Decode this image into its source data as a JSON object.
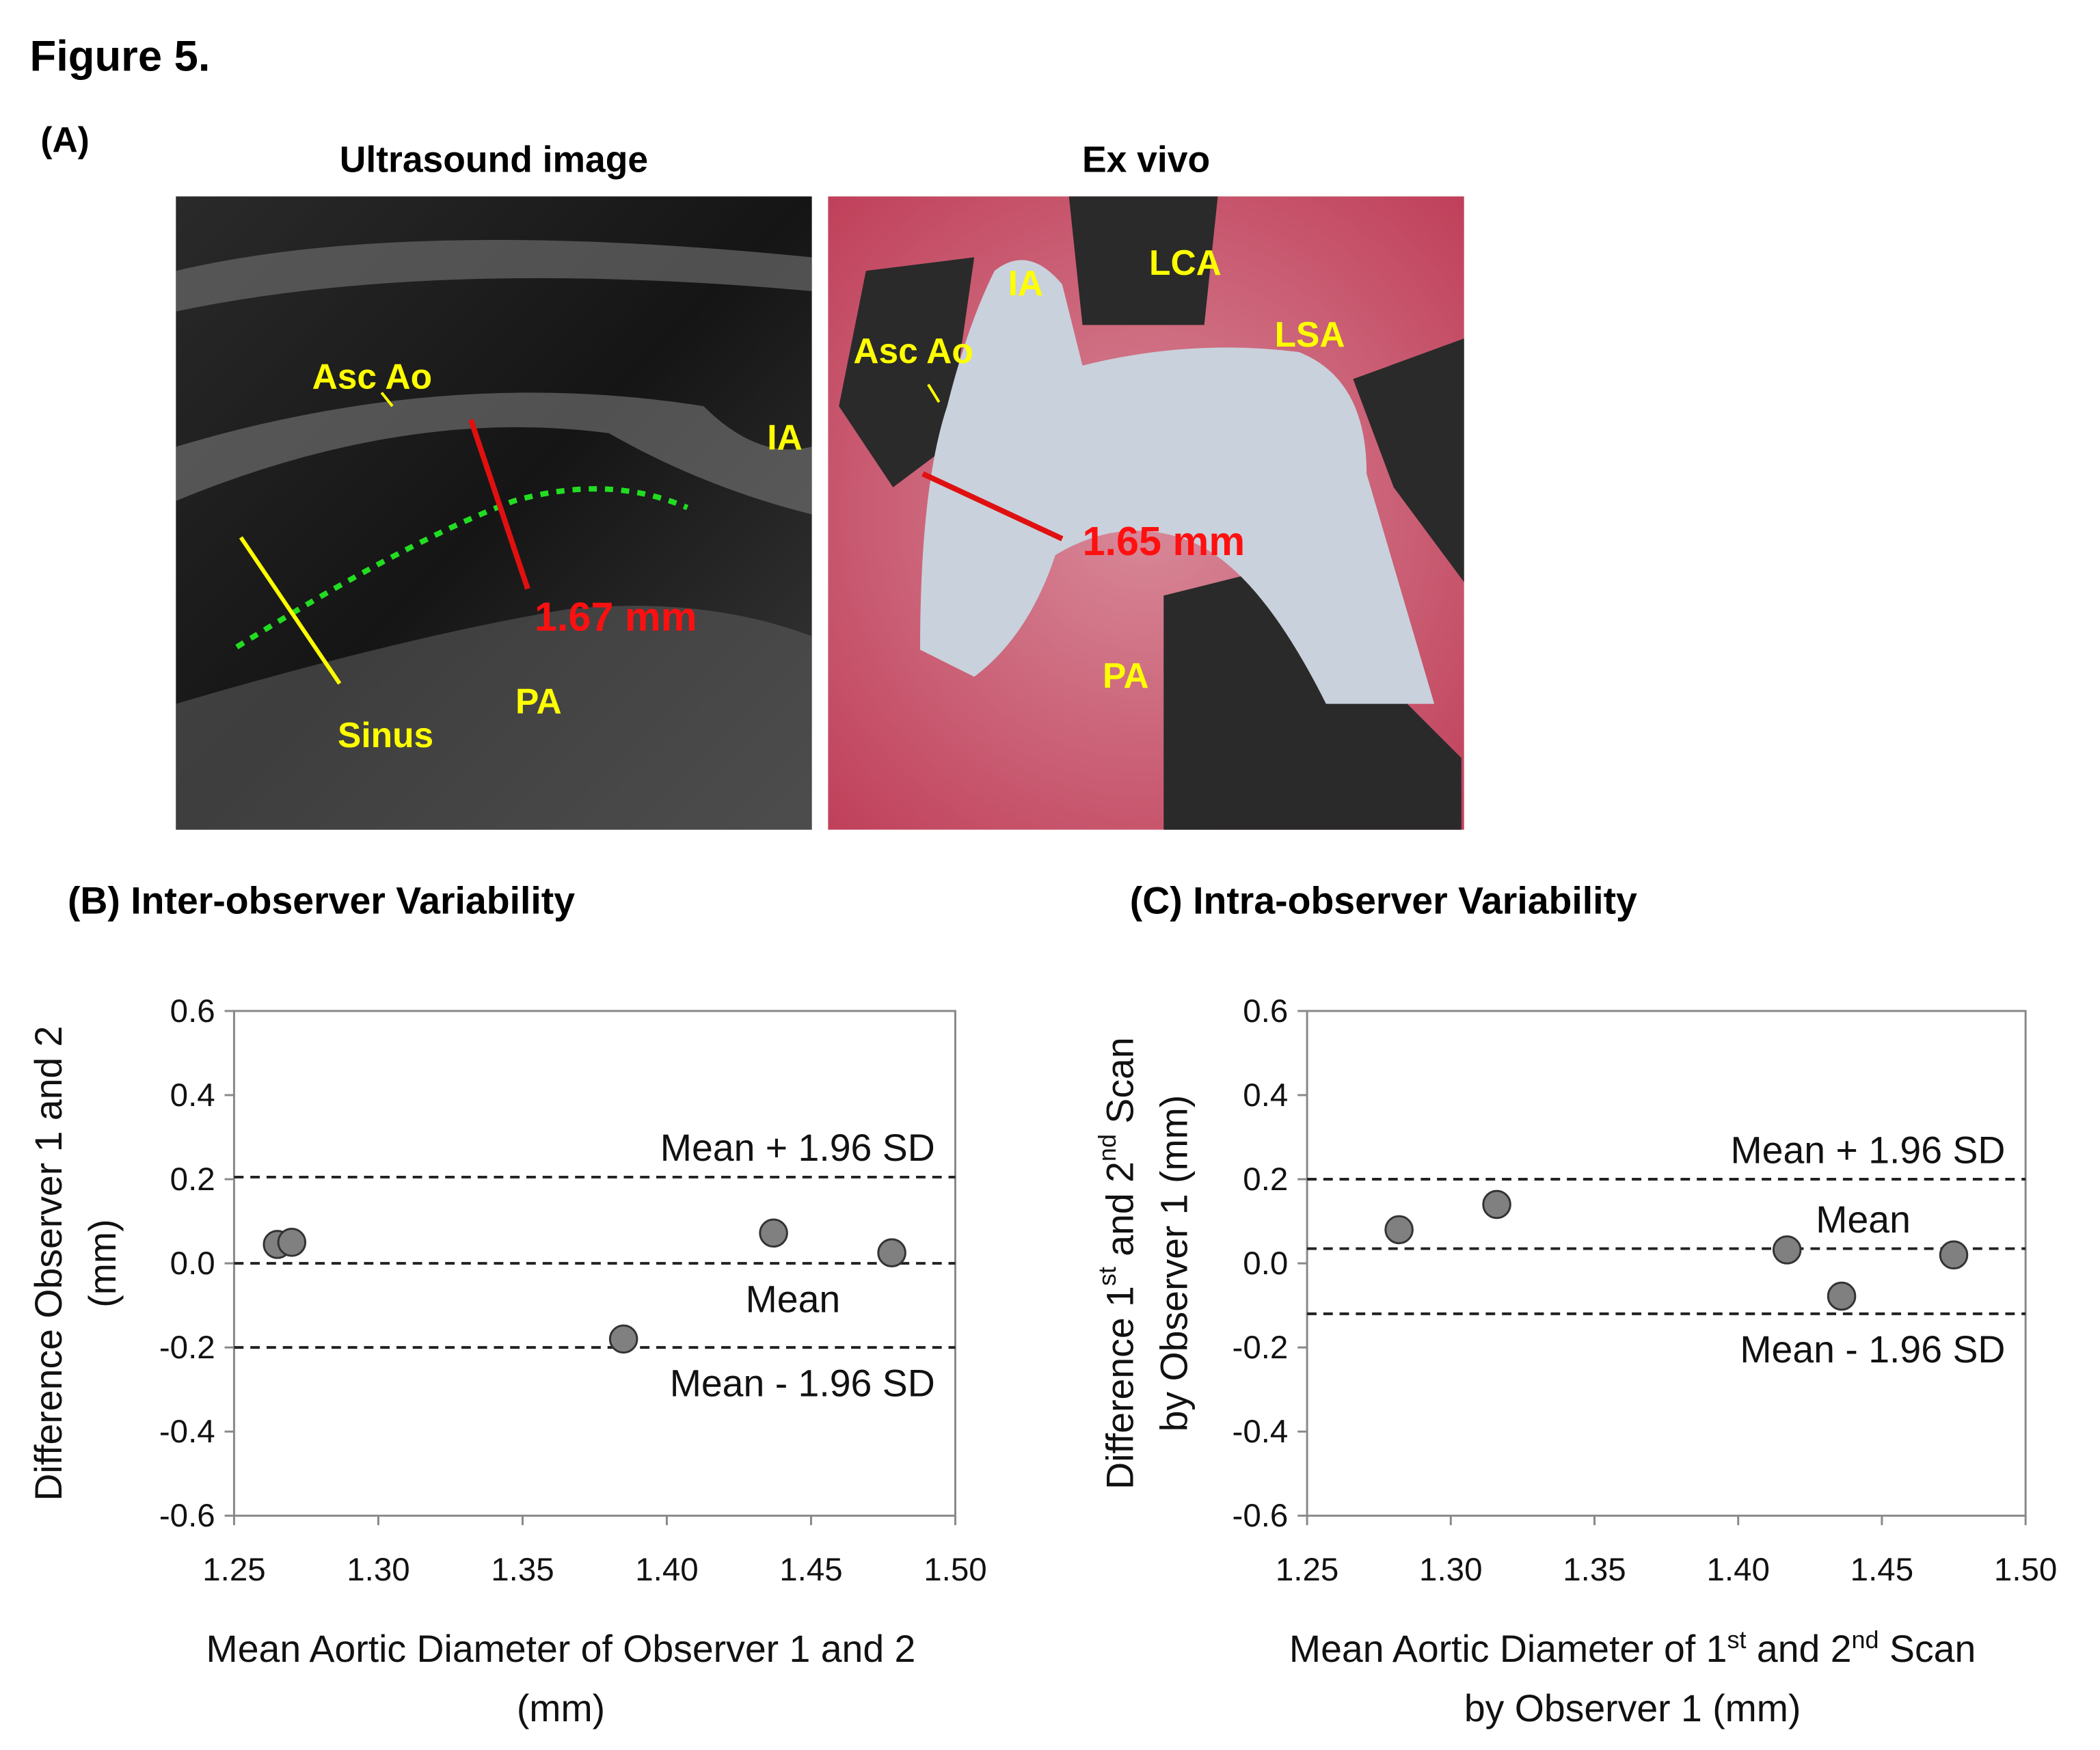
{
  "figure_title": "Figure 5.",
  "panel_a": {
    "label": "(A)",
    "ultrasound": {
      "title": "Ultrasound image",
      "labels": [
        "Asc Ao",
        "IA",
        "Sinus",
        "PA"
      ],
      "measurement": "1.67 mm"
    },
    "ex_vivo": {
      "title": "Ex vivo",
      "labels": [
        "IA",
        "LCA",
        "LSA",
        "Asc Ao",
        "PA"
      ],
      "measurement": "1.65 mm"
    }
  },
  "chart_data": [
    {
      "type": "scatter",
      "title": "(B) Inter-observer Variability",
      "xlabel": [
        "Mean Aortic Diameter of Observer 1 and 2",
        "(mm)"
      ],
      "ylabel": [
        "Difference Observer 1 and 2",
        "(mm)"
      ],
      "x": [
        1.265,
        1.27,
        1.385,
        1.437,
        1.478
      ],
      "values": [
        0.045,
        0.05,
        -0.18,
        0.072,
        0.025
      ],
      "color": "#808080",
      "xlim": [
        1.25,
        1.5
      ],
      "ylim": [
        -0.6,
        0.6
      ],
      "xticks": [
        1.25,
        {
          "value": 1.3,
          "label": "1.30"
        },
        1.35,
        {
          "value": 1.4,
          "label": "1.40"
        },
        1.45,
        {
          "value": 1.5,
          "label": "1.50"
        }
      ],
      "yticks": [
        -0.6,
        -0.4,
        -0.2,
        {
          "value": 0,
          "label": "0.0"
        },
        0.2,
        0.4,
        0.6
      ],
      "reference_lines": [
        {
          "value": 0.205,
          "label": "Mean + 1.96 SD",
          "label_side": "above"
        },
        {
          "value": 0,
          "label": "Mean",
          "label_side": "below"
        },
        {
          "value": -0.2,
          "label": "Mean - 1.96 SD",
          "label_side": "below"
        }
      ]
    },
    {
      "type": "scatter",
      "title": "(C) Intra-observer Variability",
      "xlabel": [
        "Mean Aortic Diameter of 1st and 2nd Scan",
        "by Observer 1 (mm)"
      ],
      "ylabel": [
        "Difference 1st and 2nd Scan",
        "by Observer 1 (mm)"
      ],
      "x": [
        1.282,
        1.316,
        1.417,
        1.436,
        1.475
      ],
      "values": [
        0.08,
        0.14,
        0.032,
        -0.078,
        0.02
      ],
      "color": "#808080",
      "xlim": [
        1.25,
        1.5
      ],
      "ylim": [
        -0.6,
        0.6
      ],
      "xticks": [
        1.25,
        {
          "value": 1.3,
          "label": "1.30"
        },
        1.35,
        {
          "value": 1.4,
          "label": "1.40"
        },
        1.45,
        {
          "value": 1.5,
          "label": "1.50"
        }
      ],
      "yticks": [
        -0.6,
        -0.4,
        -0.2,
        {
          "value": 0,
          "label": "0.0"
        },
        0.2,
        0.4,
        0.6
      ],
      "reference_lines": [
        {
          "value": 0.2,
          "label": "Mean + 1.96 SD",
          "label_side": "above"
        },
        {
          "value": 0.035,
          "label": "Mean",
          "label_side": "above"
        },
        {
          "value": -0.12,
          "label": "Mean - 1.96 SD",
          "label_side": "below"
        }
      ]
    }
  ]
}
